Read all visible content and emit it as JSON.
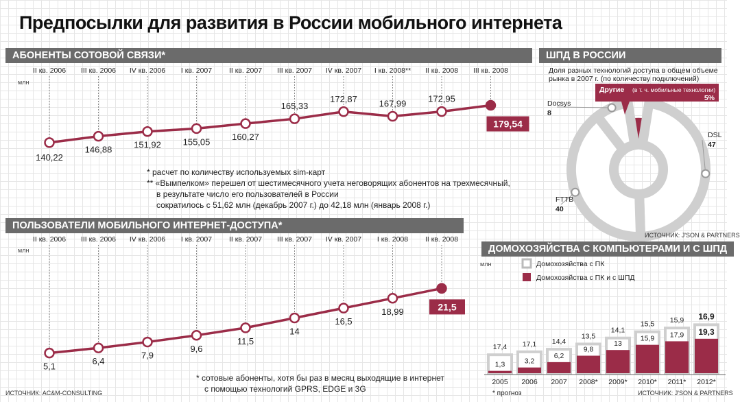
{
  "title": "Предпосылки для развития в России мобильного интернета",
  "sections": {
    "subscribers": "АБОНЕНТЫ СОТОВОЙ СВЯЗИ*",
    "internet_users": "ПОЛЬЗОВАТЕЛИ МОБИЛЬНОГО ИНТЕРНЕТ-ДОСТУПА*",
    "broadband": "ШПД В РОССИИ",
    "households": "ДОМОХОЗЯЙСТВА С КОМПЬЮТЕРАМИ И С ШПД"
  },
  "notes": {
    "subs_1": "*  расчет по количеству используемых sim-карт",
    "subs_2": "** «Вымпелком» перешел от шестимесячного учета неговорящих абонентов на трехмесячный,",
    "subs_3": "в результате число его пользователей в России",
    "subs_4": "сократилось с 51,62 млн (декабрь 2007 г.) до 42,18 млн (январь 2008 г.)",
    "users_1": "* сотовые абоненты, хотя бы раз в месяц выходящие в интернет",
    "users_2": "с помощью технологий GPRS, EDGE и 3G",
    "forecast": "* прогноз"
  },
  "sources": {
    "left": "ИСТОЧНИК: AC&M-CONSULTING",
    "pie": "ИСТОЧНИК: J'SON & PARTNERS",
    "hh": "ИСТОЧНИК: J'SON & PARTNERS"
  },
  "colors": {
    "accent": "#9b2c48",
    "grey": "#6b6b6b",
    "light_grey": "#cccccc"
  },
  "chart_data": [
    {
      "type": "line",
      "title": "АБОНЕНТЫ СОТОВОЙ СВЯЗИ*",
      "ylabel": "млн",
      "categories": [
        "II кв. 2006",
        "III кв. 2006",
        "IV кв. 2006",
        "I кв. 2007",
        "II кв. 2007",
        "III кв. 2007",
        "IV кв. 2007",
        "I кв. 2008**",
        "II кв. 2008",
        "III кв. 2008"
      ],
      "values": [
        140.22,
        146.88,
        151.92,
        155.05,
        160.27,
        165.33,
        172.87,
        167.99,
        172.95,
        179.54
      ],
      "labels": [
        "140,22",
        "146,88",
        "151,92",
        "155,05",
        "160,27",
        "165,33",
        "172,87",
        "167,99",
        "172,95",
        "179,54"
      ],
      "ylim": [
        130,
        185
      ]
    },
    {
      "type": "line",
      "title": "ПОЛЬЗОВАТЕЛИ МОБИЛЬНОГО ИНТЕРНЕТ-ДОСТУПА*",
      "ylabel": "млн",
      "categories": [
        "II кв. 2006",
        "III кв. 2006",
        "IV кв. 2006",
        "I кв. 2007",
        "II кв. 2007",
        "III кв. 2007",
        "IV кв. 2007",
        "I кв. 2008",
        "II кв. 2008"
      ],
      "values": [
        5.1,
        6.4,
        7.9,
        9.6,
        11.5,
        14,
        16.5,
        18.99,
        21.5
      ],
      "labels": [
        "5,1",
        "6,4",
        "7,9",
        "9,6",
        "11,5",
        "14",
        "16,5",
        "18,99",
        "21,5"
      ],
      "ylim": [
        0,
        24
      ]
    },
    {
      "type": "pie",
      "title": "ШПД В РОССИИ",
      "subtitle_1": "Доля разных технологий доступа в общем объеме",
      "subtitle_2": "рынка в 2007 г. (по количеству подключений)",
      "slices": [
        {
          "name": "Другие",
          "note": "(в т. ч. мобильные технологии)",
          "value": 5
        },
        {
          "name": "DSL",
          "value": 47
        },
        {
          "name": "FTTB",
          "value": 40
        },
        {
          "name": "Docsys",
          "value": 8
        }
      ],
      "legend_placement": "around"
    },
    {
      "type": "bar",
      "title": "ДОМОХОЗЯЙСТВА С КОМПЬЮТЕРАМИ И С ШПД",
      "ylabel": "млн",
      "categories": [
        "2005",
        "2006",
        "2007",
        "2008*",
        "2009*",
        "2010*",
        "2011*",
        "2012*"
      ],
      "series": [
        {
          "name": "Домохозяйства с ПК",
          "values": [
            17.4,
            17.1,
            14.4,
            13.5,
            14.1,
            15.5,
            15.9,
            16.9
          ],
          "labels": [
            "17,4",
            "17,1",
            "14,4",
            "13,5",
            "14,1",
            "15,5",
            "15,9",
            "16,9"
          ]
        },
        {
          "name": "Домохозяйства с ПК и с ШПД",
          "values": [
            1.3,
            3.2,
            6.2,
            9.8,
            13,
            15.9,
            17.9,
            19.3
          ],
          "labels": [
            "1,3",
            "3,2",
            "6,2",
            "9,8",
            "13",
            "15,9",
            "17,9",
            "19,3"
          ]
        }
      ]
    }
  ]
}
